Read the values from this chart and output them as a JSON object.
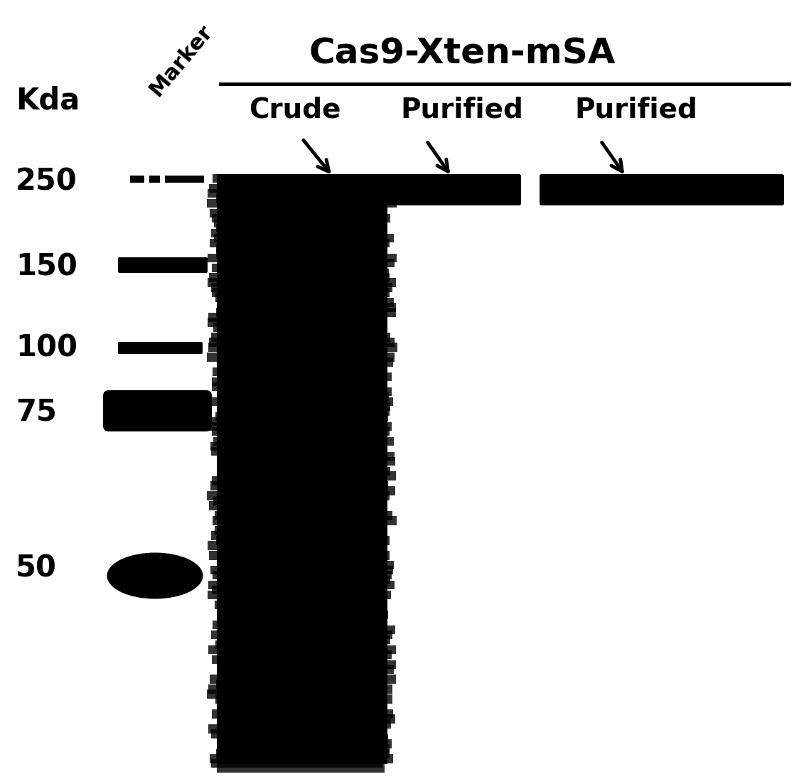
{
  "bg_color": "#ffffff",
  "title": "Cas9-Xten-mSA",
  "title_fontsize": 32,
  "marker_label": "Marker",
  "kda_label": "Kda",
  "col_labels": [
    "Crude",
    "Purified",
    "Purified"
  ],
  "mw_labels": [
    "250",
    "150",
    "100",
    "75",
    "50"
  ],
  "figw": 11.31,
  "figh": 11.03
}
